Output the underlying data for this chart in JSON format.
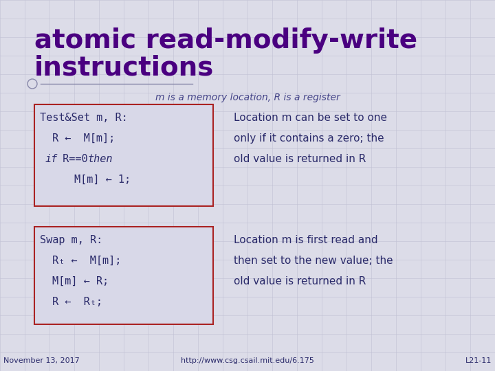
{
  "bg_color": "#dcdce8",
  "grid_color": "#c0c0d4",
  "title_line1": "atomic read-modify-write",
  "title_line2": "instructions",
  "title_color": "#4a0080",
  "subtitle": "m is a memory location, R is a register",
  "subtitle_color": "#444488",
  "box1_line1": "Test&Set m, R:",
  "box1_line2": "R ←  M[m];",
  "box1_line3_a": "if",
  "box1_line3_b": "  R==0 ",
  "box1_line3_c": "then",
  "box1_line4": "      M[m] ← 1;",
  "box2_line1": "Swap m, R:",
  "box2_line2": "Rₜ ←  M[m];",
  "box2_line3": "M[m] ← R;",
  "box2_line4": "R ←  Rₜ;",
  "desc1_lines": [
    "Location m can be set to one",
    "only if it contains a zero; the",
    "old value is returned in R"
  ],
  "desc2_lines": [
    "Location m is first read and",
    "then set to the new value; the",
    "old value is returned in R"
  ],
  "desc_color": "#2a2a6a",
  "box_edge_color": "#aa2222",
  "box_face_color": "#d8d8e8",
  "code_color": "#2a2a6a",
  "footer_left": "November 13, 2017",
  "footer_center": "http://www.csg.csail.mit.edu/6.175",
  "footer_right": "L21-11",
  "footer_color": "#2a2a6a",
  "accent_line_color": "#8888aa",
  "title_fontsize": 28,
  "body_fontsize": 11,
  "footer_fontsize": 8
}
